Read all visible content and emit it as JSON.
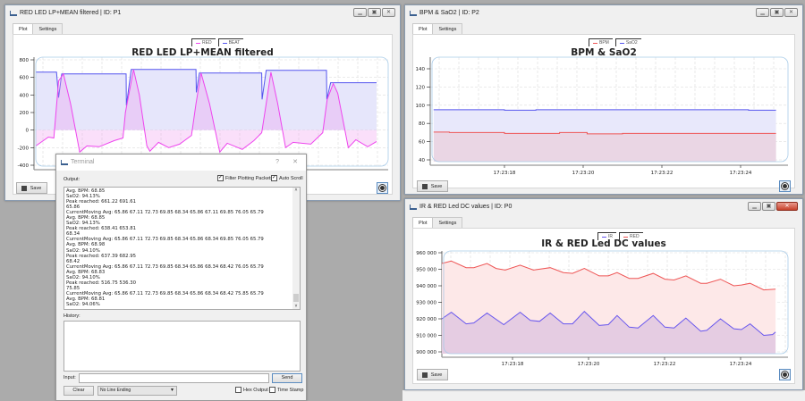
{
  "windows": {
    "p1": {
      "title": "RED LED LP+MEAN filtered  |  ID: P1",
      "tabs": [
        "Plot",
        "Settings"
      ],
      "save": "Save",
      "chart_title": "RED LED LP+MEAN filtered",
      "legend": [
        {
          "name": "RED",
          "color": "#ee44ee"
        },
        {
          "name": "BEAT",
          "color": "#5555ee"
        }
      ]
    },
    "p2": {
      "title": "BPM & SaO2  |  ID: P2",
      "tabs": [
        "Plot",
        "Settings"
      ],
      "save": "Save",
      "chart_title": "BPM & SaO2",
      "legend": [
        {
          "name": "BPM",
          "color": "#ee5555"
        },
        {
          "name": "SaO2",
          "color": "#5555ee"
        }
      ]
    },
    "p0": {
      "title": "IR & RED Led DC values  |  ID: P0",
      "tabs": [
        "Plot",
        "Settings"
      ],
      "save": "Save",
      "chart_title": "IR & RED Led DC values",
      "legend": [
        {
          "name": "IR",
          "color": "#6655ee"
        },
        {
          "name": "RED",
          "color": "#ee5555"
        }
      ]
    }
  },
  "terminal": {
    "title": "Terminal",
    "help": "?",
    "close": "✕",
    "output_label": "Output:",
    "filter_label": "Filter Plotting Packets",
    "filter_checked": true,
    "autoscroll_label": "Auto Scroll",
    "autoscroll_checked": true,
    "output_lines": [
      "Avg. BPM: 68.85",
      "SaO2: 94.13%",
      "Peak reached: 661.22 691.61",
      "65.86",
      "CurrentMoving Avg: 65.86 67.11 72.73 69.85 68.34 65.86 67.11 69.85 76.05 65.79",
      "Avg. BPM: 68.85",
      "SaO2: 94.13%",
      "Peak reached: 638.41 653.81",
      "68.34",
      "CurrentMoving Avg: 65.86 67.11 72.73 69.85 68.34 65.86 68.34 69.85 76.05 65.79",
      "Avg. BPM: 68.98",
      "SaO2: 94.10%",
      "Peak reached: 637.39 682.95",
      "68.42",
      "CurrentMoving Avg: 65.86 67.11 72.73 69.85 68.34 65.86 68.34 68.42 76.05 65.79",
      "Avg. BPM: 68.83",
      "SaO2: 94.10%",
      "Peak reached: 516.75 536.30",
      "75.85",
      "CurrentMoving Avg: 65.86 67.11 72.73 69.85 68.34 65.86 68.34 68.42 75.85 65.79",
      "Avg. BPM: 68.81",
      "SaO2: 94.06%"
    ],
    "history_label": "History:",
    "input_label": "Input:",
    "input_value": "",
    "send": "Send",
    "clear": "Clear",
    "line_ending": "No Line Ending",
    "hex_label": "Hex Output",
    "hex_checked": false,
    "timestamp_label": "Time Stamp",
    "timestamp_checked": false
  },
  "chart_data": [
    {
      "id": "p1",
      "type": "area",
      "title": "RED LED LP+MEAN filtered",
      "ylim": [
        -400,
        800
      ],
      "yticks": [
        800,
        600,
        400,
        200,
        0,
        -200,
        -400
      ],
      "grid": true,
      "series": [
        {
          "name": "BEAT",
          "color": "#5555ee",
          "fill": "#e6e6fb",
          "points": [
            [
              0,
              660
            ],
            [
              6.1,
              660
            ],
            [
              6.7,
              370
            ],
            [
              7.6,
              640
            ],
            [
              26.5,
              640
            ],
            [
              26.6,
              280
            ],
            [
              28,
              690
            ],
            [
              47,
              690
            ],
            [
              47.1,
              430
            ],
            [
              48,
              650
            ],
            [
              66.3,
              650
            ],
            [
              66.4,
              350
            ],
            [
              67.6,
              680
            ],
            [
              85.3,
              680
            ],
            [
              85.4,
              350
            ],
            [
              86.5,
              540
            ],
            [
              100,
              540
            ]
          ]
        },
        {
          "name": "RED",
          "color": "#ee44ee",
          "fill": "rgba(240,150,240,0.3)",
          "points": [
            [
              0,
              -180
            ],
            [
              3.7,
              -80
            ],
            [
              5.3,
              -90
            ],
            [
              6.7,
              560
            ],
            [
              8.1,
              640
            ],
            [
              10.2,
              300
            ],
            [
              12.9,
              -250
            ],
            [
              15,
              -180
            ],
            [
              18.6,
              -190
            ],
            [
              23,
              -120
            ],
            [
              25.6,
              -90
            ],
            [
              26.3,
              200
            ],
            [
              28.7,
              690
            ],
            [
              30.4,
              400
            ],
            [
              32.6,
              -180
            ],
            [
              33.5,
              -240
            ],
            [
              36,
              -140
            ],
            [
              39,
              -200
            ],
            [
              42.2,
              -160
            ],
            [
              45.7,
              -60
            ],
            [
              47,
              300
            ],
            [
              48.5,
              650
            ],
            [
              51,
              300
            ],
            [
              54,
              -250
            ],
            [
              56.2,
              -150
            ],
            [
              60.6,
              -220
            ],
            [
              64,
              -120
            ],
            [
              66.3,
              -30
            ],
            [
              67.6,
              300
            ],
            [
              69,
              660
            ],
            [
              71,
              300
            ],
            [
              73.3,
              -200
            ],
            [
              75.5,
              -140
            ],
            [
              80.7,
              -160
            ],
            [
              84.2,
              -30
            ],
            [
              85.5,
              350
            ],
            [
              87.3,
              530
            ],
            [
              88.6,
              420
            ],
            [
              91.7,
              -200
            ],
            [
              93.9,
              -110
            ],
            [
              97.4,
              -190
            ],
            [
              100,
              -130
            ]
          ]
        }
      ]
    },
    {
      "id": "p2",
      "type": "area",
      "title": "BPM & SaO2",
      "ylim": [
        37,
        152
      ],
      "yticks": [
        140,
        120,
        100,
        80,
        60,
        40
      ],
      "xticks": [
        "17:23:18",
        "17:23:20",
        "17:23:22",
        "17:23:24"
      ],
      "grid": true,
      "series": [
        {
          "name": "SaO2",
          "color": "#5555ee",
          "fill": "#e8e8fb",
          "points": [
            [
              "17:23:16.2",
              95
            ],
            [
              "17:23:18.0",
              95
            ],
            [
              "17:23:18.0",
              94.5
            ],
            [
              "17:23:18.8",
              94.5
            ],
            [
              "17:23:18.8",
              95
            ],
            [
              "17:23:24.2",
              95
            ],
            [
              "17:23:24.2",
              94.5
            ],
            [
              "17:23:24.9",
              94.5
            ]
          ]
        },
        {
          "name": "BPM",
          "color": "#ee5555",
          "fill": "rgba(240,160,160,0.25)",
          "points": [
            [
              "17:23:16.2",
              70.5
            ],
            [
              "17:23:16.6",
              70.5
            ],
            [
              "17:23:16.6",
              70
            ],
            [
              "17:23:18.0",
              70
            ],
            [
              "17:23:18.0",
              69
            ],
            [
              "17:23:19.4",
              69
            ],
            [
              "17:23:19.4",
              70
            ],
            [
              "17:23:20.1",
              70
            ],
            [
              "17:23:20.1",
              68.5
            ],
            [
              "17:23:21.0",
              68.5
            ],
            [
              "17:23:21.0",
              69
            ],
            [
              "17:23:24.9",
              69
            ]
          ]
        }
      ]
    },
    {
      "id": "p0",
      "type": "area",
      "title": "IR & RED Led DC values",
      "ylim": [
        899500,
        960500
      ],
      "yticks": [
        960000,
        950000,
        940000,
        930000,
        920000,
        910000,
        900000
      ],
      "ytick_labels": [
        "960 000",
        "950 000",
        "940 000",
        "930 000",
        "920 000",
        "910 000",
        "900 000"
      ],
      "xticks": [
        "17:23:18",
        "17:23:20",
        "17:23:22",
        "17:23:24"
      ],
      "grid": true,
      "series": [
        {
          "name": "RED",
          "color": "#ee5555",
          "fill": "#fde8e8",
          "points": [
            [
              "17:23:16.14",
              953500
            ],
            [
              "17:23:16.39",
              955000
            ],
            [
              "17:23:16.78",
              951000
            ],
            [
              "17:23:16.98",
              951000
            ],
            [
              "17:23:17.33",
              953500
            ],
            [
              "17:23:17.57",
              950500
            ],
            [
              "17:23:17.81",
              949500
            ],
            [
              "17:23:18.20",
              952500
            ],
            [
              "17:23:18.55",
              949500
            ],
            [
              "17:23:18.99",
              951000
            ],
            [
              "17:23:19.34",
              948000
            ],
            [
              "17:23:19.58",
              947500
            ],
            [
              "17:23:19.89",
              950500
            ],
            [
              "17:23:20.28",
              946000
            ],
            [
              "17:23:20.52",
              946000
            ],
            [
              "17:23:20.75",
              948000
            ],
            [
              "17:23:21.07",
              944500
            ],
            [
              "17:23:21.30",
              944500
            ],
            [
              "17:23:21.70",
              947500
            ],
            [
              "17:23:22.01",
              944000
            ],
            [
              "17:23:22.25",
              943500
            ],
            [
              "17:23:22.56",
              946000
            ],
            [
              "17:23:22.95",
              941500
            ],
            [
              "17:23:23.11",
              941500
            ],
            [
              "17:23:23.47",
              944000
            ],
            [
              "17:23:23.82",
              940000
            ],
            [
              "17:23:24.02",
              940500
            ],
            [
              "17:23:24.25",
              941500
            ],
            [
              "17:23:24.61",
              937500
            ],
            [
              "17:23:24.92",
              938000
            ]
          ]
        },
        {
          "name": "IR",
          "color": "#6655ee",
          "fill": "rgba(200,170,220,0.45)",
          "points": [
            [
              "17:23:16.14",
              920000
            ],
            [
              "17:23:16.39",
              924000
            ],
            [
              "17:23:16.78",
              917000
            ],
            [
              "17:23:16.98",
              917500
            ],
            [
              "17:23:17.33",
              923500
            ],
            [
              "17:23:17.77",
              916500
            ],
            [
              "17:23:18.20",
              924000
            ],
            [
              "17:23:18.47",
              919000
            ],
            [
              "17:23:18.71",
              918500
            ],
            [
              "17:23:18.99",
              923500
            ],
            [
              "17:23:19.34",
              917000
            ],
            [
              "17:23:19.58",
              917000
            ],
            [
              "17:23:19.89",
              924500
            ],
            [
              "17:23:20.28",
              916000
            ],
            [
              "17:23:20.52",
              916500
            ],
            [
              "17:23:20.75",
              922000
            ],
            [
              "17:23:21.07",
              915000
            ],
            [
              "17:23:21.30",
              914500
            ],
            [
              "17:23:21.70",
              922000
            ],
            [
              "17:23:22.01",
              915000
            ],
            [
              "17:23:22.25",
              914500
            ],
            [
              "17:23:22.56",
              920500
            ],
            [
              "17:23:22.95",
              912500
            ],
            [
              "17:23:23.11",
              913000
            ],
            [
              "17:23:23.47",
              920000
            ],
            [
              "17:23:23.82",
              914000
            ],
            [
              "17:23:24.02",
              913500
            ],
            [
              "17:23:24.25",
              917000
            ],
            [
              "17:23:24.61",
              910000
            ],
            [
              "17:23:24.84",
              910500
            ],
            [
              "17:23:24.92",
              912000
            ]
          ]
        }
      ]
    }
  ]
}
